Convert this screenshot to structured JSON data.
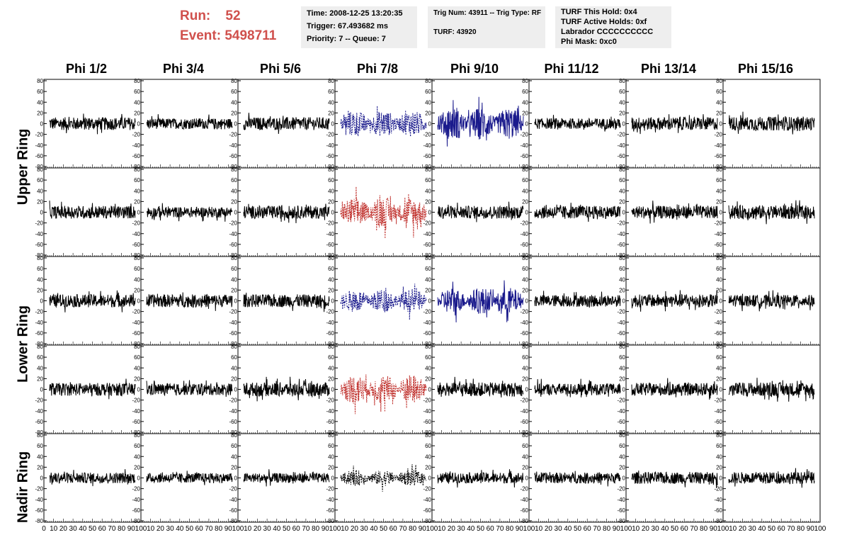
{
  "header": {
    "run_label": "Run:",
    "run_value": "52",
    "event_label": "Event:",
    "event_value": "5498711",
    "info_box_1": {
      "time": "Time: 2008-12-25 13:20:35",
      "trigger": "Trigger: 67.493682 ms",
      "priority": "Priority: 7 -- Queue: 7"
    },
    "info_box_2": {
      "trig": "Trig Num: 43911 -- Trig Type: RF",
      "turf": "TURF: 43920"
    },
    "info_box_3": {
      "hold": "TURF This Hold: 0x4",
      "active": "TURF Active Holds: 0xf",
      "labrador": "Labrador CCCCCCCCCC",
      "phimask": "Phi Mask: 0xc0"
    },
    "colors": {
      "header_text": "#d0504c",
      "box_bg": "#eeeeee"
    }
  },
  "columns": [
    "Phi 1/2",
    "Phi 3/4",
    "Phi 5/6",
    "Phi 7/8",
    "Phi 9/10",
    "Phi 11/12",
    "Phi 13/14",
    "Phi 15/16"
  ],
  "ring_labels": [
    "Upper Ring",
    "Lower Ring",
    "Nadir Ring"
  ],
  "y_ticks": [
    "-80",
    "-60",
    "-40",
    "-20",
    "0",
    "20",
    "40",
    "60",
    "80"
  ],
  "x_ticks": [
    "0",
    "10",
    "20",
    "30",
    "40",
    "50",
    "60",
    "70",
    "80",
    "90",
    "100"
  ],
  "panels": {
    "x_range": [
      0,
      100
    ],
    "y_range": [
      -80,
      80
    ],
    "trace_colors": {
      "normal": "#000000",
      "blue": "#1a1a8c",
      "red": "#c0302c",
      "dotted_black": "#000000"
    },
    "amplitude": [
      [
        12,
        10,
        12,
        25,
        30,
        10,
        12,
        13
      ],
      [
        12,
        10,
        12,
        28,
        12,
        12,
        12,
        13
      ],
      [
        12,
        12,
        12,
        22,
        25,
        11,
        12,
        11
      ],
      [
        12,
        11,
        13,
        28,
        13,
        11,
        12,
        13
      ],
      [
        10,
        9,
        9,
        15,
        10,
        10,
        11,
        11
      ]
    ],
    "styles": [
      [
        "normal",
        "normal",
        "normal",
        "blue-dashed",
        "blue",
        "normal",
        "normal",
        "normal"
      ],
      [
        "normal",
        "normal",
        "normal",
        "red-dashed",
        "normal",
        "normal",
        "normal",
        "normal"
      ],
      [
        "normal",
        "normal",
        "normal",
        "blue-dashed",
        "blue",
        "normal",
        "normal",
        "normal"
      ],
      [
        "normal",
        "normal",
        "normal",
        "red-dashed",
        "normal",
        "normal",
        "normal",
        "normal"
      ],
      [
        "normal",
        "normal",
        "normal",
        "black-dashed",
        "normal",
        "normal",
        "normal",
        "normal"
      ]
    ]
  }
}
